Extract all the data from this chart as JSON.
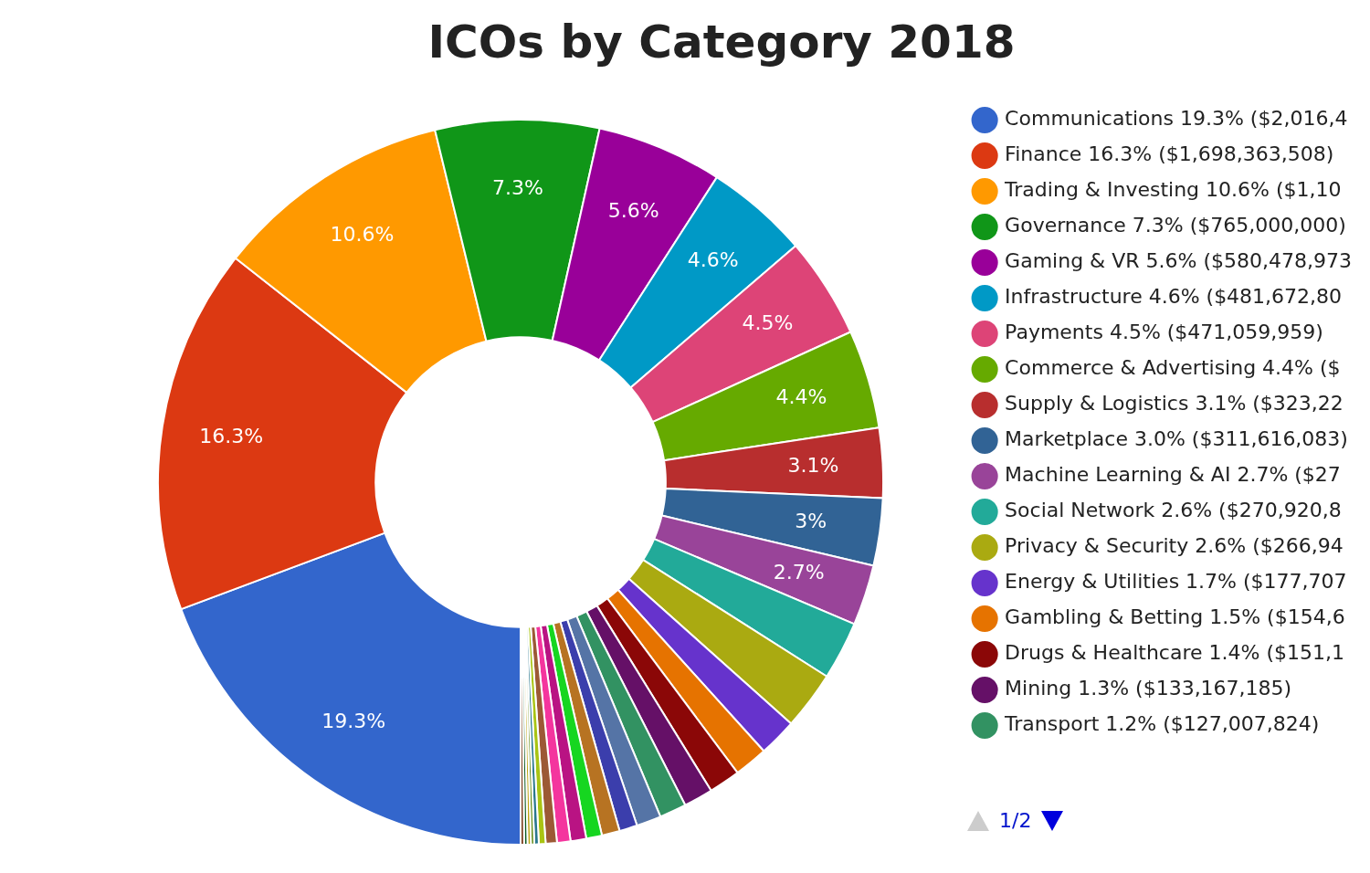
{
  "chart_data": {
    "type": "donut",
    "title": "ICOs by Category 2018",
    "legend": "right",
    "annotations": [
      "1/2"
    ],
    "categories": [
      "Communications 19.3% ($2,016,4",
      "Finance 16.3% ($1,698,363,508)",
      "Trading & Investing 10.6% ($1,10",
      "Governance 7.3% ($765,000,000)",
      "Gaming & VR 5.6% ($580,478,973",
      "Infrastructure 4.6% ($481,672,80",
      "Payments 4.5% ($471,059,959)",
      "Commerce & Advertising 4.4% ($",
      "Supply & Logistics 3.1% ($323,22",
      "Marketplace 3.0% ($311,616,083)",
      "Machine Learning & AI 2.7% ($27",
      "Social Network 2.6% ($270,920,8",
      "Privacy & Security 2.6% ($266,94",
      "Energy & Utilities 1.7% ($177,707",
      "Gambling & Betting 1.5% ($154,6",
      "Drugs & Healthcare 1.4% ($151,1",
      "Mining 1.3% ($133,167,185)",
      "Transport 1.2% ($127,007,824)",
      null,
      null,
      null,
      null,
      null,
      null,
      null,
      null,
      null,
      null,
      null,
      null,
      null
    ],
    "values": [
      19.3,
      16.3,
      10.6,
      7.3,
      5.6,
      4.6,
      4.5,
      4.4,
      3.1,
      3.0,
      2.7,
      2.6,
      2.6,
      1.7,
      1.5,
      1.4,
      1.3,
      1.2,
      1.1,
      0.8,
      0.8,
      0.7,
      0.7,
      0.6,
      0.5,
      0.3,
      0.2,
      0.15,
      0.15,
      0.15,
      0.15
    ],
    "value_labels": [
      "19.3%",
      "16.3%",
      "10.6%",
      "7.3%",
      "5.6%",
      "4.6%",
      "4.5%",
      "4.4%",
      "3.1%",
      "3%",
      "2.7%",
      null,
      null,
      null,
      null,
      null,
      null,
      null,
      null,
      null,
      null,
      null,
      null,
      null,
      null,
      null,
      null,
      null,
      null,
      null,
      null
    ],
    "colors": [
      "#3366cc",
      "#dc3912",
      "#ff9900",
      "#109618",
      "#990099",
      "#0099c6",
      "#dd4477",
      "#66aa00",
      "#b82e2e",
      "#316395",
      "#994499",
      "#22aa99",
      "#aaaa11",
      "#6633cc",
      "#e67300",
      "#8b0707",
      "#651067",
      "#329262",
      "#5574a6",
      "#3b3eac",
      "#b77322",
      "#16d620",
      "#b91383",
      "#f4359e",
      "#9c5935",
      "#a9c413",
      "#2a778d",
      "#668d1c",
      "#bea413",
      "#0c5922",
      "#743411"
    ]
  }
}
